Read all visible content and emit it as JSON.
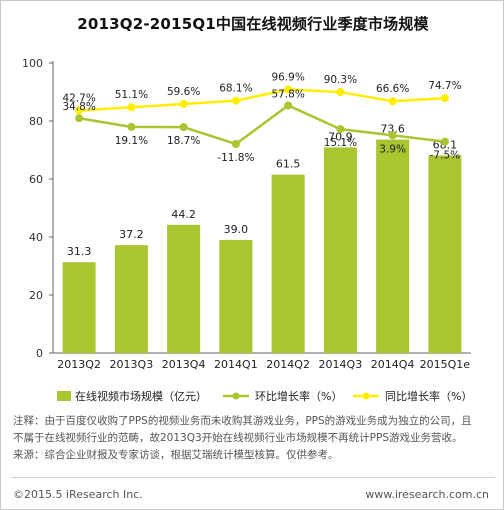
{
  "chart_data": {
    "type": "bar",
    "title": "2013Q2-2015Q1中国在线视频行业季度市场规模",
    "categories": [
      "2013Q2",
      "2013Q3",
      "2013Q4",
      "2014Q1",
      "2014Q2",
      "2014Q3",
      "2014Q4",
      "2015Q1e"
    ],
    "ylim": [
      0,
      100
    ],
    "yticks": [
      0,
      20,
      40,
      60,
      80,
      100
    ],
    "series": [
      {
        "name": "在线视频市场规模（亿元）",
        "kind": "bar",
        "color": "#a9c52f",
        "values": [
          31.3,
          37.2,
          44.2,
          39.0,
          61.5,
          70.9,
          73.6,
          68.1
        ],
        "labels": [
          "31.3",
          "37.2",
          "44.2",
          "39.0",
          "61.5",
          "70.9",
          "73.6",
          "68.1"
        ]
      },
      {
        "name": "环比增长率（%）",
        "kind": "line",
        "color": "#a9c52f",
        "values": [
          34.8,
          19.1,
          18.7,
          -11.8,
          57.8,
          15.1,
          3.9,
          -7.5
        ],
        "labels": [
          "34.8%",
          "19.1%",
          "18.7%",
          "-11.8%",
          "57.8%",
          "15.1%",
          "3.9%",
          "-7.5%"
        ]
      },
      {
        "name": "同比增长率（%）",
        "kind": "line",
        "color": "#ffee00",
        "values": [
          42.7,
          51.1,
          59.6,
          68.1,
          96.9,
          90.3,
          66.6,
          74.7
        ],
        "labels": [
          "42.7%",
          "51.1%",
          "59.6%",
          "68.1%",
          "96.9%",
          "90.3%",
          "66.6%",
          "74.7%"
        ]
      }
    ],
    "grid": false,
    "legend_position": "bottom"
  },
  "notes": {
    "line1": "注释：由于百度仅收购了PPS的视频业务而未收购其游戏业务，PPS的游戏业务成为独立的公司，且",
    "line2": "不属于在线视频行业的范畴，故2013Q3开始在线视频行业市场规模不再统计PPS游戏业务营收。",
    "line3": "来源：综合企业财报及专家访谈，根据艾瑞统计模型核算。仅供参考。"
  },
  "footer": {
    "left": "©2015.5 iResearch Inc.",
    "right": "www.iresearch.com.cn"
  }
}
